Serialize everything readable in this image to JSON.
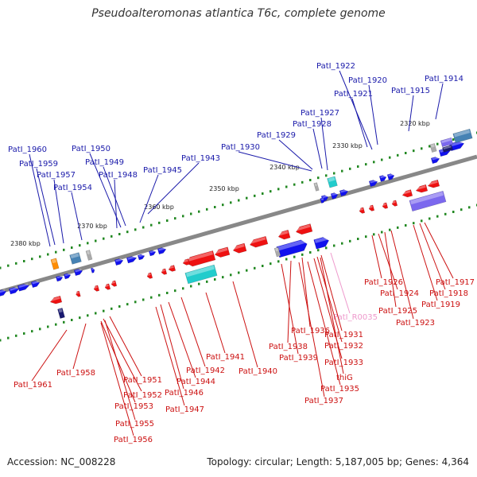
{
  "title": "Pseudoalteromonas atlantica T6c, complete genome",
  "accession_text": "Accession: NC_008228",
  "summary_text": "Topology: circular; Length: 5,187,005 bp; Genes: 4,364",
  "colors": {
    "backbone": "#888888",
    "fwd_gene": "#1111ee",
    "rev_gene": "#ee1111",
    "fwd_label": "#1a1aaa",
    "rev_label": "#cc1111",
    "rna_label": "#ee99cc",
    "tick": "#228822",
    "cyan": "#22cccc",
    "steel": "#4682b4",
    "purple": "#7b68ee",
    "orange": "#ff8c00",
    "navy": "#191970",
    "grey": "#aaaaaa"
  },
  "ticks": [
    {
      "label": "2320 kbp"
    },
    {
      "label": "2330 kbp"
    },
    {
      "label": "2340 kbp"
    },
    {
      "label": "2350 kbp"
    },
    {
      "label": "2360 kbp"
    },
    {
      "label": "2370 kbp"
    },
    {
      "label": "2380 kbp"
    }
  ],
  "forward_labels": [
    "PatI_1914",
    "PatI_1915",
    "PatI_1922",
    "PatI_1920",
    "PatI_1921",
    "PatI_1927",
    "PatI_1928",
    "PatI_1929",
    "PatI_1930",
    "PatI_1943",
    "PatI_1945",
    "PatI_1950",
    "PatI_1949",
    "PatI_1948",
    "PatI_1960",
    "PatI_1959",
    "PatI_1957",
    "PatI_1954"
  ],
  "reverse_labels": [
    "PatI_1917",
    "PatI_1918",
    "PatI_1919",
    "PatI_1926",
    "PatI_1924",
    "PatI_1925",
    "PatI_1923",
    "PatI_R0035",
    "PatI_1931",
    "PatI_1932",
    "PatI_1933",
    "PatI_1936",
    "PatI_1938",
    "PatI_1939",
    "thiG",
    "PatI_1935",
    "PatI_1937",
    "PatI_1941",
    "PatI_1940",
    "PatI_1942",
    "PatI_1944",
    "PatI_1946",
    "PatI_1947",
    "PatI_1951",
    "PatI_1952",
    "PatI_1953",
    "PatI_1955",
    "PatI_1956",
    "PatI_1958",
    "PatI_1961"
  ]
}
